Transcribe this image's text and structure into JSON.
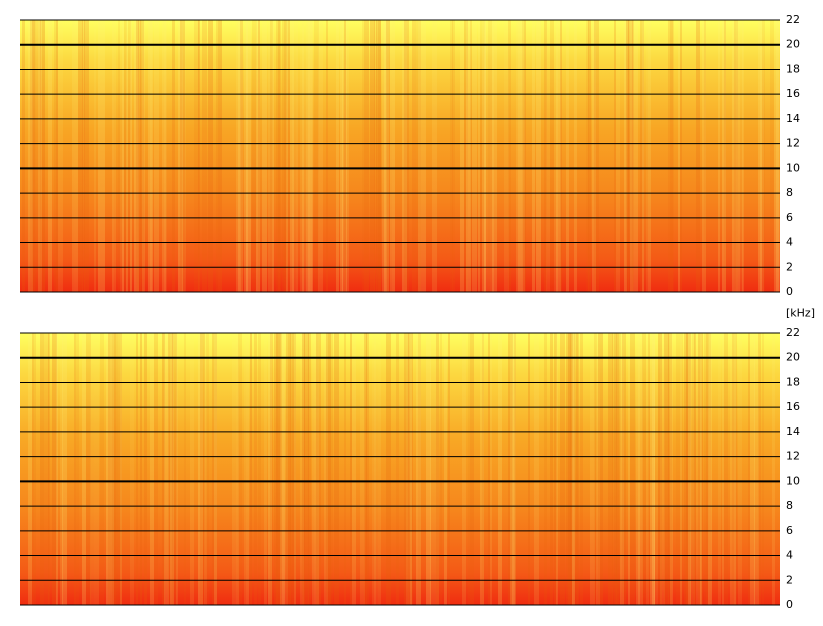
{
  "chart_data": [
    {
      "type": "spectrogram",
      "ylabel": "[kHz]",
      "ylim": [
        0,
        22
      ],
      "yticks": [
        0,
        2,
        4,
        6,
        8,
        10,
        12,
        14,
        16,
        18,
        20,
        22
      ],
      "grid": true
    },
    {
      "type": "spectrogram",
      "ylim": [
        0,
        22
      ],
      "yticks": [
        0,
        2,
        4,
        6,
        8,
        10,
        12,
        14,
        16,
        18,
        20,
        22
      ],
      "grid": true
    }
  ]
}
